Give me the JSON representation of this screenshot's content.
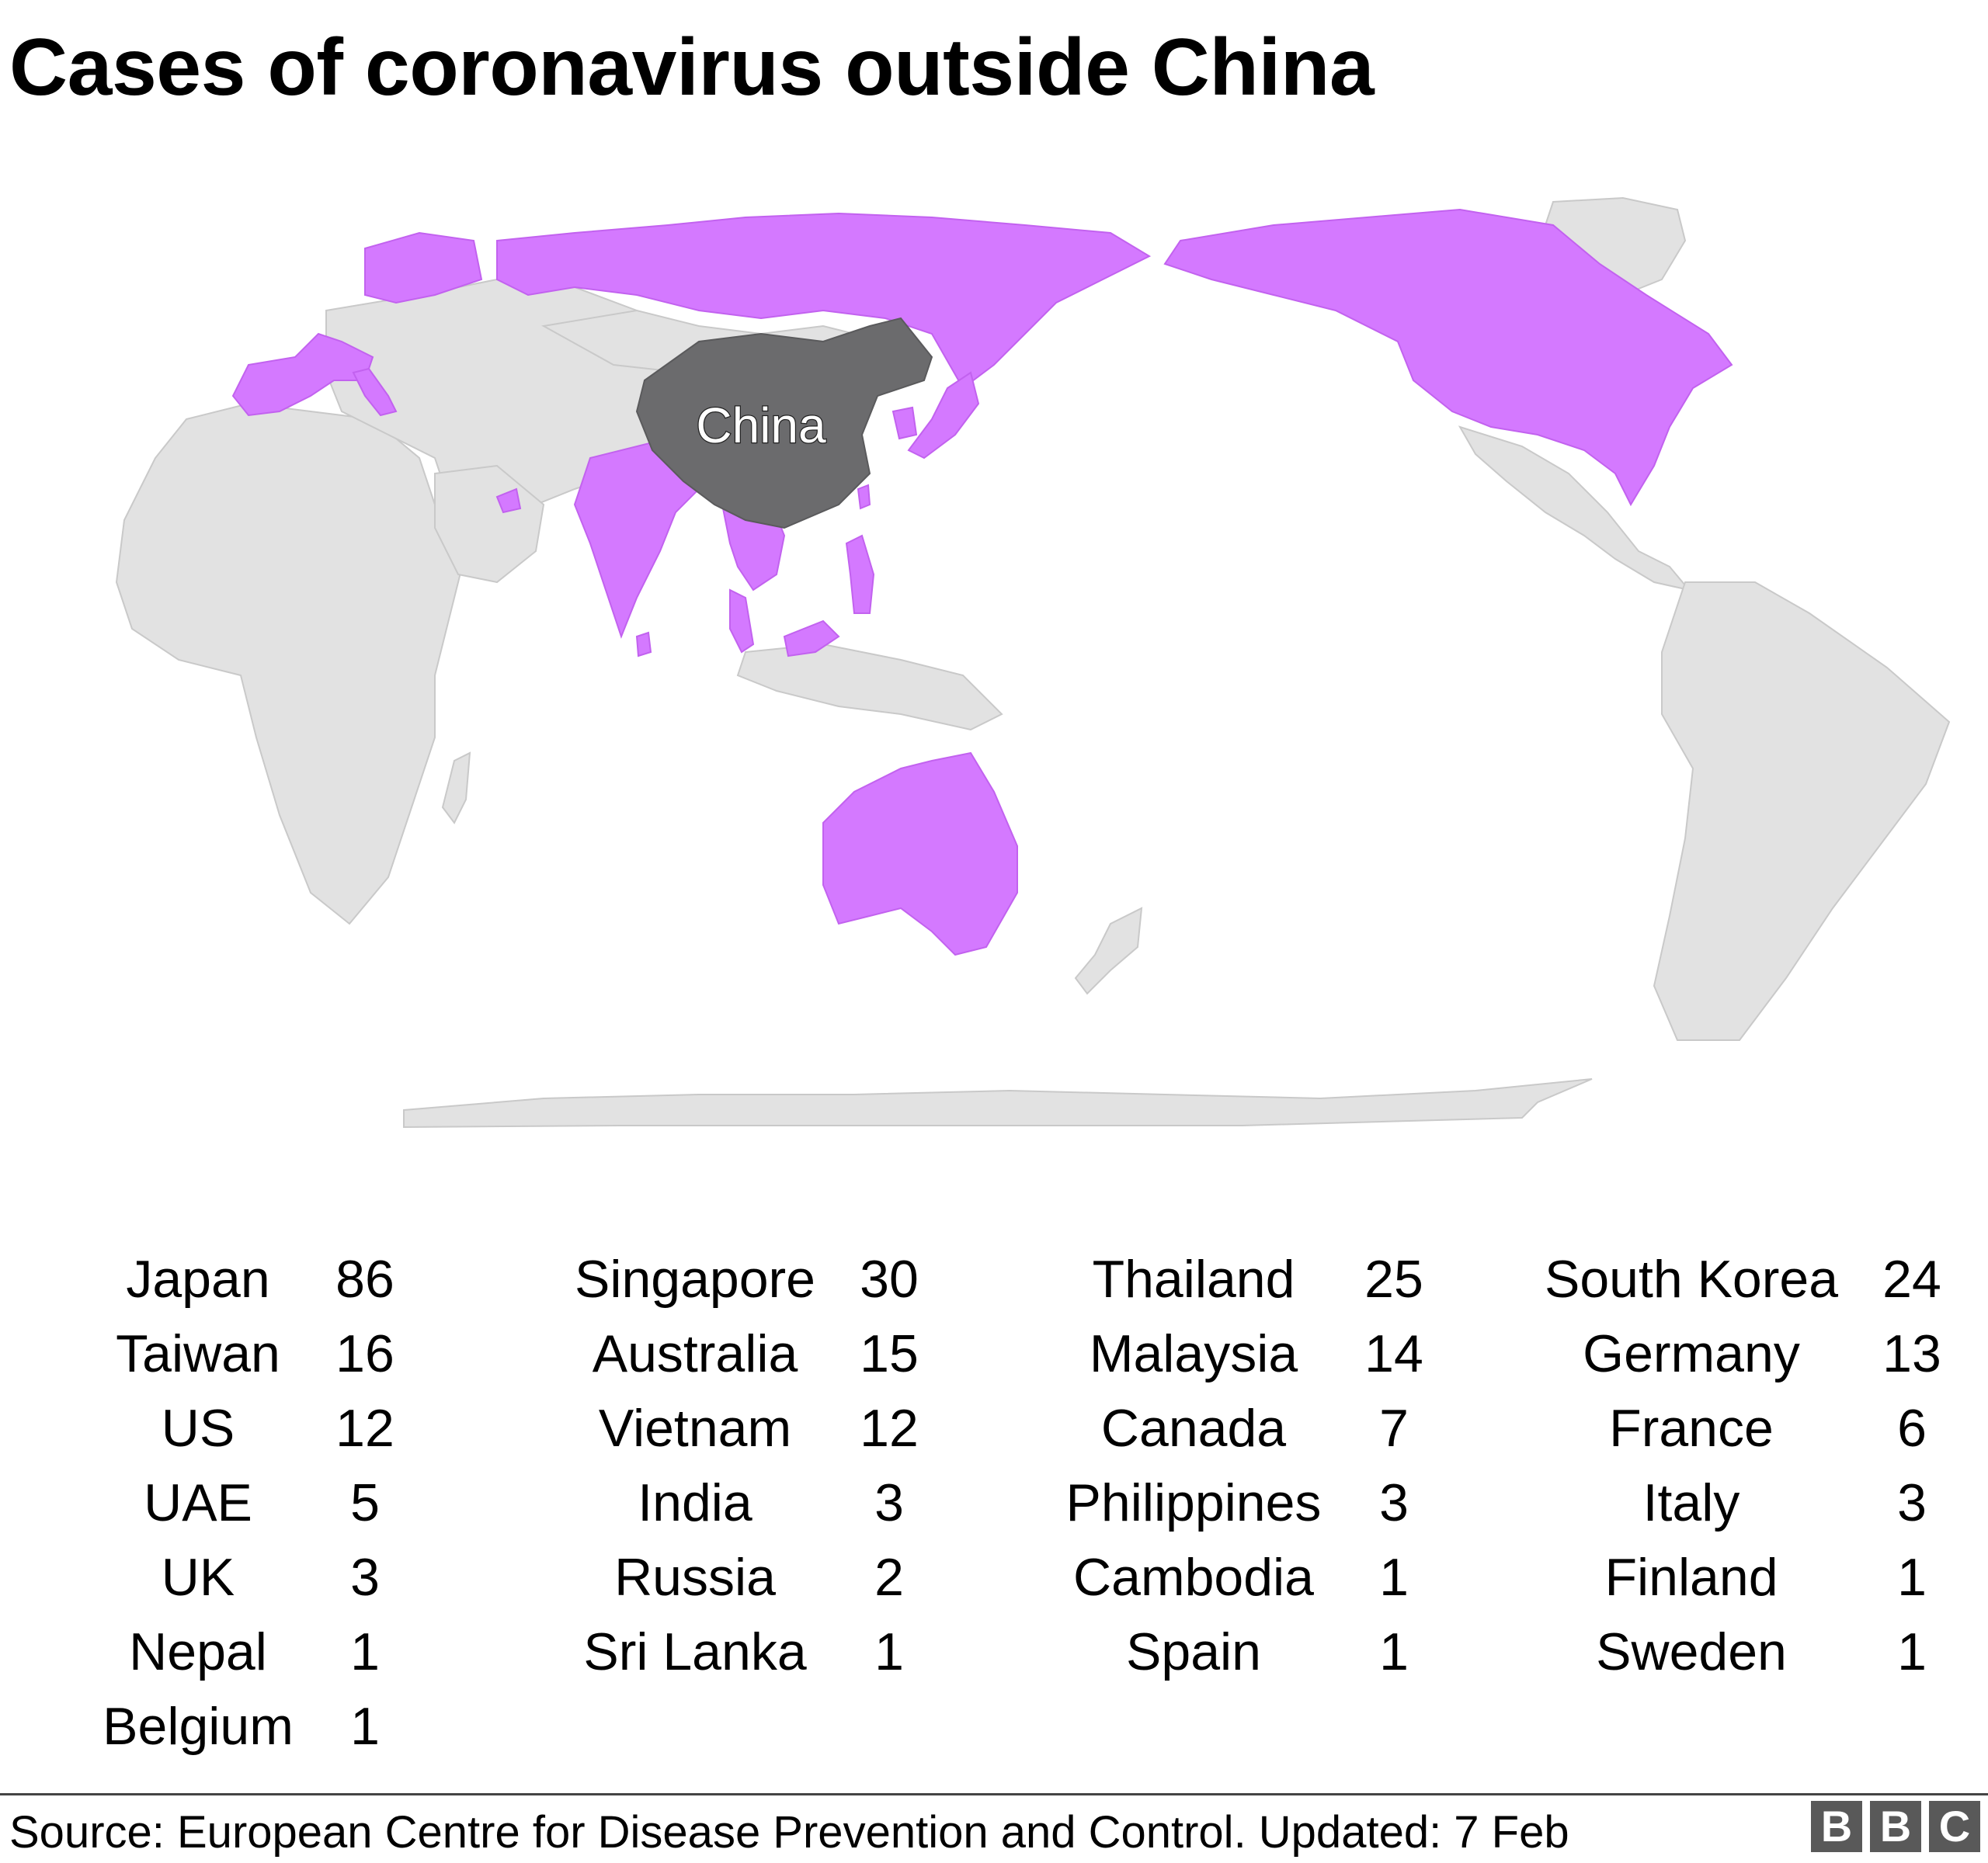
{
  "title": "Cases of coronavirus outside China",
  "map": {
    "highlight_label": "China",
    "colors": {
      "land": "#e2e2e2",
      "affected": "#d479ff",
      "origin": "#6b6b6d",
      "borders": "#c9c9c9"
    },
    "affected_countries": [
      "Japan",
      "Singapore",
      "Thailand",
      "South Korea",
      "Taiwan",
      "Australia",
      "Malaysia",
      "Germany",
      "US",
      "Vietnam",
      "Canada",
      "France",
      "UAE",
      "India",
      "Philippines",
      "Italy",
      "UK",
      "Russia",
      "Cambodia",
      "Finland",
      "Nepal",
      "Sri Lanka",
      "Spain",
      "Sweden",
      "Belgium"
    ]
  },
  "cases": {
    "columns": [
      [
        {
          "country": "Japan",
          "count": "86"
        },
        {
          "country": "Taiwan",
          "count": "16"
        },
        {
          "country": "US",
          "count": "12"
        },
        {
          "country": "UAE",
          "count": "5"
        },
        {
          "country": "UK",
          "count": "3"
        },
        {
          "country": "Nepal",
          "count": "1"
        },
        {
          "country": "Belgium",
          "count": "1"
        }
      ],
      [
        {
          "country": "Singapore",
          "count": "30"
        },
        {
          "country": "Australia",
          "count": "15"
        },
        {
          "country": "Vietnam",
          "count": "12"
        },
        {
          "country": "India",
          "count": "3"
        },
        {
          "country": "Russia",
          "count": "2"
        },
        {
          "country": "Sri Lanka",
          "count": "1"
        }
      ],
      [
        {
          "country": "Thailand",
          "count": "25"
        },
        {
          "country": "Malaysia",
          "count": "14"
        },
        {
          "country": "Canada",
          "count": "7"
        },
        {
          "country": "Philippines",
          "count": "3"
        },
        {
          "country": "Cambodia",
          "count": "1"
        },
        {
          "country": "Spain",
          "count": "1"
        }
      ],
      [
        {
          "country": "South Korea",
          "count": "24"
        },
        {
          "country": "Germany",
          "count": "13"
        },
        {
          "country": "France",
          "count": "6"
        },
        {
          "country": "Italy",
          "count": "3"
        },
        {
          "country": "Finland",
          "count": "1"
        },
        {
          "country": "Sweden",
          "count": "1"
        }
      ]
    ]
  },
  "footer": {
    "source": "Source: European Centre for Disease Prevention and Control. Updated: 7 Feb",
    "logo_letters": [
      "B",
      "B",
      "C"
    ]
  }
}
